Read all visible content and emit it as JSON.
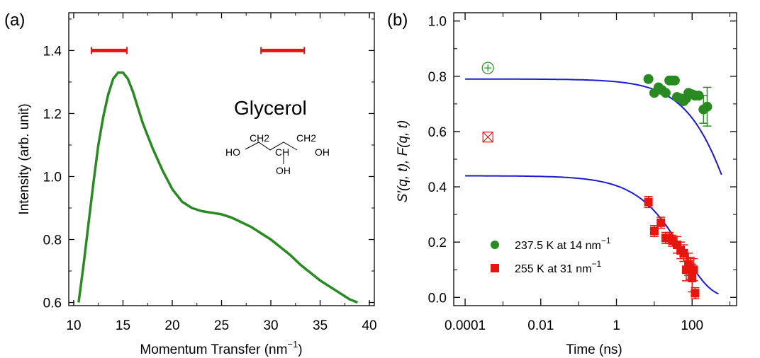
{
  "colors": {
    "green": "#2a8a22",
    "red": "#e8150f",
    "blue": "#1a1ad0"
  },
  "chart_data": [
    {
      "type": "line",
      "panel_label": "(a)",
      "xlabel": "Momentum Transfer (nm",
      "xlabel_sup": "−1",
      "xlabel_close": ")",
      "ylabel": "Intensity (arb. unit)",
      "xlim": [
        9.5,
        40.5
      ],
      "ylim": [
        0.59,
        1.52
      ],
      "xticks": [
        10,
        15,
        20,
        25,
        30,
        35,
        40
      ],
      "yticks": [
        0.6,
        0.8,
        1.0,
        1.2,
        1.4
      ],
      "ytick_labels": [
        "0.6",
        "0.8",
        "1.0",
        "1.2",
        "1.4"
      ],
      "annotation": "Glycerol",
      "molecule_labels": [
        "HO",
        "CH2",
        "CH",
        "CH2",
        "OH",
        "OH"
      ],
      "series": [
        {
          "color": "#2a8a22",
          "x": [
            10.5,
            11.0,
            11.5,
            12.0,
            12.5,
            13.0,
            13.5,
            14.0,
            14.5,
            15.0,
            15.5,
            16.0,
            16.5,
            17.0,
            17.5,
            18.0,
            19.0,
            20.0,
            21.0,
            22.0,
            23.0,
            24.0,
            25.0,
            26.0,
            27.0,
            28.0,
            29.0,
            30.0,
            31.0,
            32.0,
            33.0,
            34.0,
            35.0,
            36.0,
            37.0,
            38.0,
            38.8
          ],
          "y": [
            0.6,
            0.72,
            0.85,
            0.98,
            1.1,
            1.19,
            1.26,
            1.31,
            1.33,
            1.33,
            1.31,
            1.27,
            1.22,
            1.17,
            1.13,
            1.09,
            1.02,
            0.96,
            0.92,
            0.9,
            0.89,
            0.885,
            0.88,
            0.87,
            0.855,
            0.84,
            0.82,
            0.8,
            0.775,
            0.75,
            0.72,
            0.695,
            0.67,
            0.65,
            0.63,
            0.61,
            0.6
          ]
        }
      ],
      "ranges": [
        {
          "color": "#e8150f",
          "x0": 11.8,
          "x1": 15.4,
          "y": 1.4
        },
        {
          "color": "#e8150f",
          "x0": 29.0,
          "x1": 33.4,
          "y": 1.4
        }
      ]
    },
    {
      "type": "scatter",
      "panel_label": "(b)",
      "xlabel": "Time (ns)",
      "ylabel": "S′(q, t), F(q, t)",
      "x_scale": "log",
      "xlim": [
        5e-05,
        1500
      ],
      "ylim": [
        -0.03,
        1.03
      ],
      "xticks": [
        0.0001,
        0.01,
        1,
        100
      ],
      "xtick_labels": [
        "0.0001",
        "0.01",
        "1",
        "100"
      ],
      "yticks": [
        0.0,
        0.2,
        0.4,
        0.6,
        0.8,
        1.0
      ],
      "ytick_labels": [
        "0.0",
        "0.2",
        "0.4",
        "0.6",
        "0.8",
        "1.0"
      ],
      "legend": [
        {
          "label": "237.5 K at 14 nm",
          "sup": "−1",
          "color": "#2a8a22",
          "marker": "circle"
        },
        {
          "label": "255 K at 31 nm",
          "sup": "−1",
          "color": "#e8150f",
          "marker": "square"
        }
      ],
      "legend_position": "lower-left",
      "open_markers": [
        {
          "x": 0.0004,
          "y": 0.83,
          "color": "#2a8a22",
          "marker": "circle-plus"
        },
        {
          "x": 0.0004,
          "y": 0.58,
          "color": "#e8150f",
          "marker": "square-x"
        }
      ],
      "series": [
        {
          "name": "237.5 K at 14 nm−1",
          "color": "#2a8a22",
          "marker": "circle",
          "x": [
            7,
            10,
            13,
            16,
            20,
            25,
            30,
            35,
            40,
            50,
            60,
            70,
            80,
            100,
            120,
            150,
            200,
            250
          ],
          "y": [
            0.79,
            0.74,
            0.76,
            0.75,
            0.74,
            0.785,
            0.785,
            0.785,
            0.725,
            0.72,
            0.71,
            0.72,
            0.74,
            0.735,
            0.73,
            0.73,
            0.68,
            0.69
          ],
          "yerr": [
            0,
            0,
            0,
            0,
            0,
            0,
            0,
            0,
            0,
            0,
            0,
            0,
            0,
            0,
            0,
            0,
            0.05,
            0.07
          ]
        },
        {
          "name": "255 K at 31 nm−1",
          "color": "#e8150f",
          "marker": "square",
          "x": [
            7,
            10,
            15,
            20,
            25,
            30,
            40,
            50,
            60,
            70,
            80,
            90,
            100,
            110,
            120
          ],
          "y": [
            0.345,
            0.24,
            0.27,
            0.215,
            0.215,
            0.205,
            0.19,
            0.17,
            0.16,
            0.1,
            0.12,
            0.105,
            0.07,
            0.1,
            0.015
          ],
          "yerr": [
            0.02,
            0.02,
            0.02,
            0.02,
            0.02,
            0.02,
            0.03,
            0.03,
            0.03,
            0.04,
            0.04,
            0.04,
            0.05,
            0.04,
            0.02
          ]
        }
      ],
      "fit_lines": [
        {
          "color": "#1a1ad0",
          "amplitude": 0.79,
          "tau": 1500,
          "beta": 0.6,
          "x_range": [
            0.0001,
            600
          ]
        },
        {
          "color": "#1a1ad0",
          "amplitude": 0.44,
          "tau": 60,
          "beta": 0.6,
          "x_range": [
            0.0001,
            500
          ]
        }
      ]
    }
  ]
}
